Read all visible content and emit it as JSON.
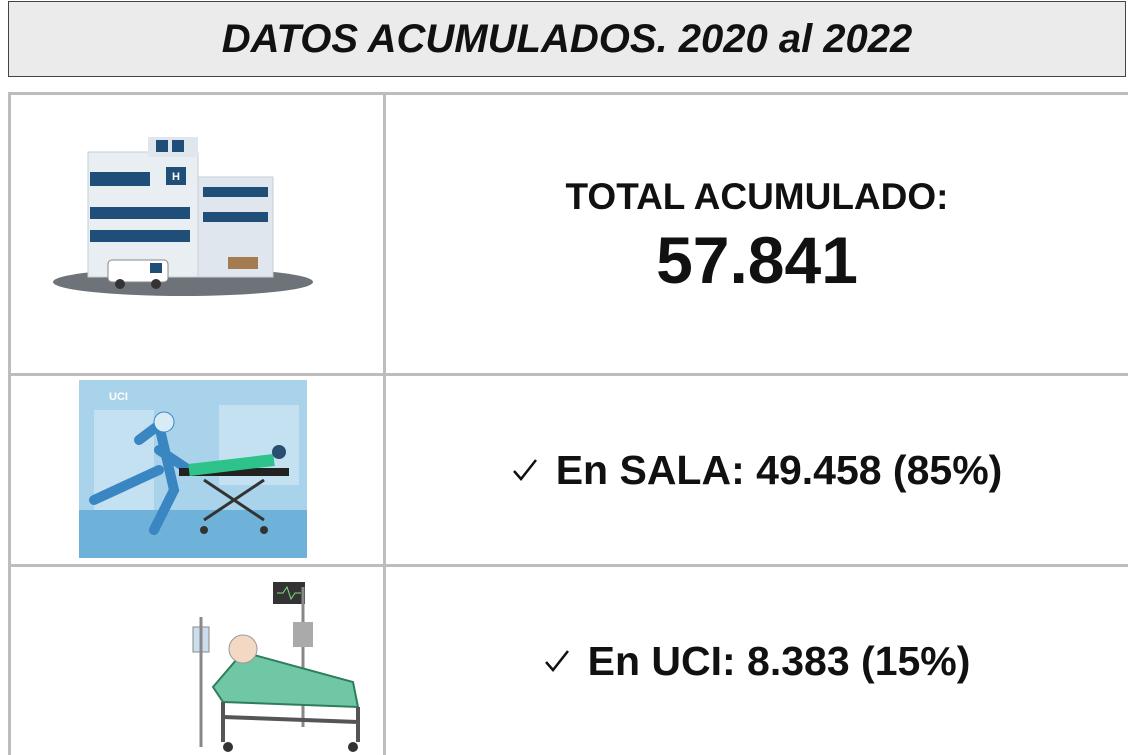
{
  "header": {
    "title": "DATOS ACUMULADOS. 2020 al 2022"
  },
  "rows": [
    {
      "label": "TOTAL ACUMULADO:",
      "value": "57.841"
    },
    {
      "label": "En SALA:",
      "value": "49.458 (85%)"
    },
    {
      "label": "En UCI:",
      "value": "8.383 (15%)"
    }
  ]
}
